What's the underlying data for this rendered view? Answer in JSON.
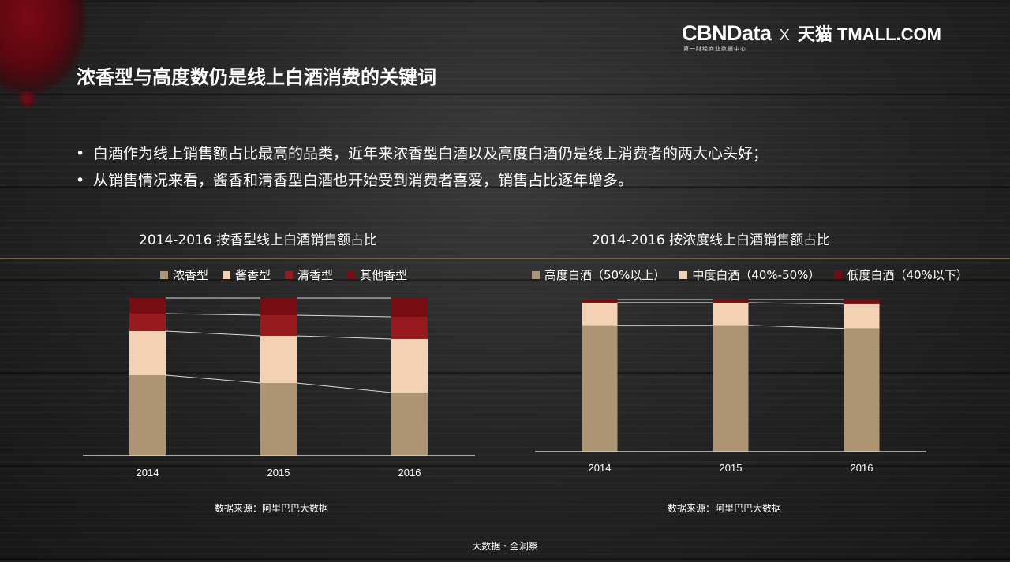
{
  "brand": {
    "logo_main": "CBNData",
    "logo_sub": "第一财经商业数据中心",
    "separator": "X",
    "partner": "天猫 TMALL.COM"
  },
  "title": "浓香型与高度数仍是线上白酒消费的关键词",
  "bullets": [
    "白酒作为线上销售额占比最高的品类，近年来浓香型白酒以及高度白酒仍是线上消费者的两大心头好；",
    "从销售情况来看，酱香和清香型白酒也开始受到消费者喜爱，销售占比逐年增多。"
  ],
  "bullet_symbol": "•",
  "colors": {
    "s1": "#ad9473",
    "s2": "#f3d1b3",
    "s3": "#961a1e",
    "s4": "#770d12",
    "axis": "#cfcfcf",
    "connector": "#d8d8d8"
  },
  "chart_data": [
    {
      "type": "bar",
      "stacked": true,
      "title": "2014-2016 按香型线上白酒销售额占比",
      "categories": [
        "2014",
        "2015",
        "2016"
      ],
      "series": [
        {
          "name": "浓香型",
          "values": [
            51,
            46,
            40
          ]
        },
        {
          "name": "酱香型",
          "values": [
            28,
            30,
            34
          ]
        },
        {
          "name": "清香型",
          "values": [
            11,
            13,
            14
          ]
        },
        {
          "name": "其他香型",
          "values": [
            10,
            11,
            12
          ]
        }
      ],
      "ylim": [
        0,
        100
      ],
      "legend_position": "top",
      "source": "数据来源：阿里巴巴大数据"
    },
    {
      "type": "bar",
      "stacked": true,
      "title": "2014-2016 按浓度线上白酒销售额占比",
      "categories": [
        "2014",
        "2015",
        "2016"
      ],
      "series": [
        {
          "name": "高度白酒（50%以上）",
          "values": [
            83,
            83,
            81
          ]
        },
        {
          "name": "中度白酒（40%-50%）",
          "values": [
            15,
            15,
            16
          ]
        },
        {
          "name": "低度白酒（40%以下）",
          "values": [
            2,
            2,
            3
          ]
        }
      ],
      "ylim": [
        0,
        100
      ],
      "legend_position": "top",
      "source": "数据来源：阿里巴巴大数据"
    }
  ],
  "footer": "大数据 · 全洞察"
}
